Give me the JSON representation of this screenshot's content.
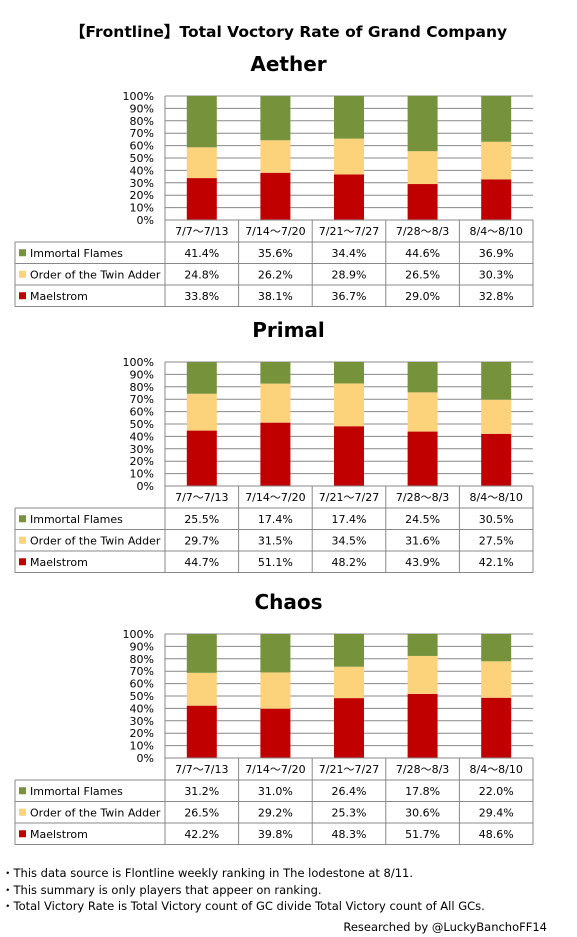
{
  "title": "【Frontline】Total Voctory Rate of  Grand Company",
  "colors": {
    "Immortal Flames": "#76933c",
    "Order of the Twin Adder": "#fcd27a",
    "Maelstrom": "#c00000",
    "grid": "#888888",
    "border": "#888888"
  },
  "y_ticks": [
    "0%",
    "10%",
    "20%",
    "30%",
    "40%",
    "50%",
    "60%",
    "70%",
    "80%",
    "90%",
    "100%"
  ],
  "chart_data": [
    {
      "type": "bar",
      "stacked": true,
      "title": "Aether",
      "categories": [
        "7/7～7/13",
        "7/14～7/20",
        "7/21～7/27",
        "7/28～8/3",
        "8/4～8/10"
      ],
      "ylim": [
        0,
        100
      ],
      "series": [
        {
          "name": "Immortal Flames",
          "values": [
            41.4,
            35.6,
            34.4,
            44.6,
            36.9
          ],
          "labels": [
            "41.4%",
            "35.6%",
            "34.4%",
            "44.6%",
            "36.9%"
          ]
        },
        {
          "name": "Order of the Twin Adder",
          "values": [
            24.8,
            26.2,
            28.9,
            26.5,
            30.3
          ],
          "labels": [
            "24.8%",
            "26.2%",
            "28.9%",
            "26.5%",
            "30.3%"
          ]
        },
        {
          "name": "Maelstrom",
          "values": [
            33.8,
            38.1,
            36.7,
            29.0,
            32.8
          ],
          "labels": [
            "33.8%",
            "38.1%",
            "36.7%",
            "29.0%",
            "32.8%"
          ]
        }
      ]
    },
    {
      "type": "bar",
      "stacked": true,
      "title": "Primal",
      "categories": [
        "7/7～7/13",
        "7/14～7/20",
        "7/21～7/27",
        "7/28～8/3",
        "8/4～8/10"
      ],
      "ylim": [
        0,
        100
      ],
      "series": [
        {
          "name": "Immortal Flames",
          "values": [
            25.5,
            17.4,
            17.4,
            24.5,
            30.5
          ],
          "labels": [
            "25.5%",
            "17.4%",
            "17.4%",
            "24.5%",
            "30.5%"
          ]
        },
        {
          "name": "Order of the Twin Adder",
          "values": [
            29.7,
            31.5,
            34.5,
            31.6,
            27.5
          ],
          "labels": [
            "29.7%",
            "31.5%",
            "34.5%",
            "31.6%",
            "27.5%"
          ]
        },
        {
          "name": "Maelstrom",
          "values": [
            44.7,
            51.1,
            48.2,
            43.9,
            42.1
          ],
          "labels": [
            "44.7%",
            "51.1%",
            "48.2%",
            "43.9%",
            "42.1%"
          ]
        }
      ]
    },
    {
      "type": "bar",
      "stacked": true,
      "title": "Chaos",
      "categories": [
        "7/7～7/13",
        "7/14～7/20",
        "7/21～7/27",
        "7/28～8/3",
        "8/4～8/10"
      ],
      "ylim": [
        0,
        100
      ],
      "series": [
        {
          "name": "Immortal Flames",
          "values": [
            31.2,
            31.0,
            26.4,
            17.8,
            22.0
          ],
          "labels": [
            "31.2%",
            "31.0%",
            "26.4%",
            "17.8%",
            "22.0%"
          ]
        },
        {
          "name": "Order of the Twin Adder",
          "values": [
            26.5,
            29.2,
            25.3,
            30.6,
            29.4
          ],
          "labels": [
            "26.5%",
            "29.2%",
            "25.3%",
            "30.6%",
            "29.4%"
          ]
        },
        {
          "name": "Maelstrom",
          "values": [
            42.2,
            39.8,
            48.3,
            51.7,
            48.6
          ],
          "labels": [
            "42.2%",
            "39.8%",
            "48.3%",
            "51.7%",
            "48.6%"
          ]
        }
      ]
    }
  ],
  "notes": [
    "・This data source is Flontline weekly ranking in The lodestone at 8/11.",
    "・This summary is only players that appeer on ranking.",
    "・Total Victory Rate is Total Victory count of GC divide Total Victory count of All GCs."
  ],
  "credit": "Researched by @LuckyBanchoFF14"
}
